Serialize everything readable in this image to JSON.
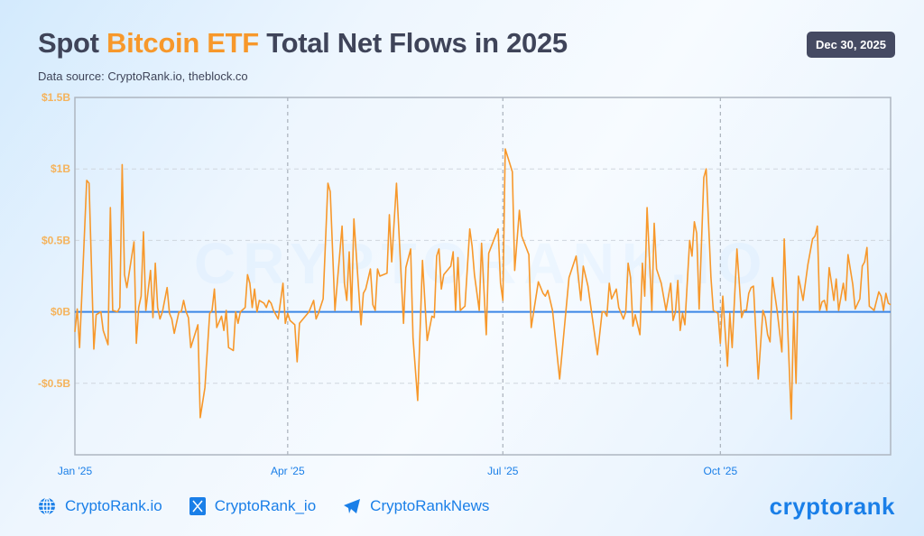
{
  "header": {
    "title_pre": "Spot ",
    "title_highlight": "Bitcoin ETF",
    "title_post": " Total Net Flows in 2025",
    "subtitle": "Data source: CryptoRank.io, theblock.co",
    "date_badge": "Dec 30, 2025"
  },
  "watermark": "CRYPTORANK.IO",
  "footer": {
    "items": [
      {
        "icon": "globe-icon",
        "label": "CryptoRank.io"
      },
      {
        "icon": "x-twitter-icon",
        "label": "CryptoRank_io"
      },
      {
        "icon": "telegram-icon",
        "label": "CryptoRankNews"
      }
    ],
    "logo": "cryptorank"
  },
  "colors": {
    "line": "#f7982b",
    "zero_line": "#3b86e6",
    "title_accent": "#f7982b",
    "tick_y": "#f5b35c",
    "tick_x": "#1a7fe8"
  },
  "chart_data": {
    "type": "line",
    "title": "Spot Bitcoin ETF Total Net Flows in 2025",
    "xlabel": "",
    "ylabel": "",
    "ylim": [
      -1.0,
      1.5
    ],
    "xlim": [
      "2025-01-01",
      "2025-12-12"
    ],
    "y_ticks": [
      {
        "value": 1.5,
        "label": "$1.5B"
      },
      {
        "value": 1.0,
        "label": "$1B"
      },
      {
        "value": 0.5,
        "label": "$0.5B"
      },
      {
        "value": 0,
        "label": "$0B"
      },
      {
        "value": -0.5,
        "label": "-$0.5B"
      }
    ],
    "x_ticks": [
      {
        "value": "2025-01-01",
        "label": "Jan '25"
      },
      {
        "value": "2025-04-01",
        "label": "Apr '25"
      },
      {
        "value": "2025-07-01",
        "label": "Jul '25"
      },
      {
        "value": "2025-10-01",
        "label": "Oct '25"
      }
    ],
    "grid": true,
    "unit": "USD billions",
    "series": [
      {
        "points": [
          [
            "2025-01-01",
            -0.14
          ],
          [
            "2025-01-02",
            0.02
          ],
          [
            "2025-01-03",
            -0.25
          ],
          [
            "2025-01-06",
            0.92
          ],
          [
            "2025-01-07",
            0.9
          ],
          [
            "2025-01-09",
            -0.26
          ],
          [
            "2025-01-10",
            -0.02
          ],
          [
            "2025-01-12",
            0.0
          ],
          [
            "2025-01-13",
            -0.13
          ],
          [
            "2025-01-15",
            -0.23
          ],
          [
            "2025-01-16",
            0.73
          ],
          [
            "2025-01-17",
            0.01
          ],
          [
            "2025-01-19",
            0.0
          ],
          [
            "2025-01-20",
            0.03
          ],
          [
            "2025-01-21",
            1.03
          ],
          [
            "2025-01-22",
            0.26
          ],
          [
            "2025-01-23",
            0.17
          ],
          [
            "2025-01-26",
            0.49
          ],
          [
            "2025-01-27",
            -0.22
          ],
          [
            "2025-01-28",
            0.03
          ],
          [
            "2025-01-29",
            0.11
          ],
          [
            "2025-01-30",
            0.56
          ],
          [
            "2025-01-31",
            0.01
          ],
          [
            "2025-02-02",
            0.29
          ],
          [
            "2025-02-03",
            -0.04
          ],
          [
            "2025-02-04",
            0.34
          ],
          [
            "2025-02-05",
            0.03
          ],
          [
            "2025-02-06",
            -0.05
          ],
          [
            "2025-02-07",
            0.0
          ],
          [
            "2025-02-09",
            0.17
          ],
          [
            "2025-02-10",
            -0.01
          ],
          [
            "2025-02-11",
            -0.05
          ],
          [
            "2025-02-12",
            -0.15
          ],
          [
            "2025-02-14",
            0.0
          ],
          [
            "2025-02-15",
            0.0
          ],
          [
            "2025-02-16",
            0.08
          ],
          [
            "2025-02-17",
            0.0
          ],
          [
            "2025-02-18",
            -0.04
          ],
          [
            "2025-02-19",
            -0.25
          ],
          [
            "2025-02-22",
            -0.09
          ],
          [
            "2025-02-23",
            -0.74
          ],
          [
            "2025-02-25",
            -0.53
          ],
          [
            "2025-02-27",
            -0.01
          ],
          [
            "2025-02-28",
            0.01
          ],
          [
            "2025-03-01",
            0.16
          ],
          [
            "2025-03-02",
            -0.11
          ],
          [
            "2025-03-04",
            -0.03
          ],
          [
            "2025-03-05",
            -0.13
          ],
          [
            "2025-03-06",
            0.01
          ],
          [
            "2025-03-07",
            -0.25
          ],
          [
            "2025-03-09",
            -0.27
          ],
          [
            "2025-03-10",
            0.0
          ],
          [
            "2025-03-11",
            -0.08
          ],
          [
            "2025-03-12",
            0.0
          ],
          [
            "2025-03-14",
            0.03
          ],
          [
            "2025-03-15",
            0.26
          ],
          [
            "2025-03-16",
            0.2
          ],
          [
            "2025-03-17",
            0.03
          ],
          [
            "2025-03-18",
            0.16
          ],
          [
            "2025-03-19",
            0.0
          ],
          [
            "2025-03-20",
            0.08
          ],
          [
            "2025-03-22",
            0.06
          ],
          [
            "2025-03-23",
            0.03
          ],
          [
            "2025-03-24",
            0.08
          ],
          [
            "2025-03-25",
            0.06
          ],
          [
            "2025-03-26",
            0.01
          ],
          [
            "2025-03-28",
            -0.05
          ],
          [
            "2025-03-30",
            0.2
          ],
          [
            "2025-03-31",
            -0.08
          ],
          [
            "2025-04-01",
            -0.01
          ],
          [
            "2025-04-02",
            -0.06
          ],
          [
            "2025-04-04",
            -0.09
          ],
          [
            "2025-04-05",
            -0.35
          ],
          [
            "2025-04-06",
            -0.08
          ],
          [
            "2025-04-10",
            0.0
          ],
          [
            "2025-04-12",
            0.08
          ],
          [
            "2025-04-13",
            -0.05
          ],
          [
            "2025-04-14",
            -0.01
          ],
          [
            "2025-04-16",
            0.09
          ],
          [
            "2025-04-18",
            0.9
          ],
          [
            "2025-04-19",
            0.84
          ],
          [
            "2025-04-21",
            0.01
          ],
          [
            "2025-04-24",
            0.6
          ],
          [
            "2025-04-25",
            0.2
          ],
          [
            "2025-04-26",
            0.08
          ],
          [
            "2025-04-27",
            0.42
          ],
          [
            "2025-04-28",
            0.01
          ],
          [
            "2025-04-29",
            0.65
          ],
          [
            "2025-05-02",
            -0.09
          ],
          [
            "2025-05-03",
            0.13
          ],
          [
            "2025-05-04",
            0.16
          ],
          [
            "2025-05-06",
            0.3
          ],
          [
            "2025-05-07",
            0.05
          ],
          [
            "2025-05-08",
            0.01
          ],
          [
            "2025-05-09",
            0.3
          ],
          [
            "2025-05-10",
            0.25
          ],
          [
            "2025-05-13",
            0.27
          ],
          [
            "2025-05-14",
            0.68
          ],
          [
            "2025-05-15",
            0.35
          ],
          [
            "2025-05-17",
            0.9
          ],
          [
            "2025-05-20",
            -0.08
          ],
          [
            "2025-05-21",
            0.31
          ],
          [
            "2025-05-23",
            0.44
          ],
          [
            "2025-05-24",
            -0.18
          ],
          [
            "2025-05-26",
            -0.62
          ],
          [
            "2025-05-28",
            0.36
          ],
          [
            "2025-05-30",
            -0.2
          ],
          [
            "2025-06-01",
            -0.03
          ],
          [
            "2025-06-02",
            -0.04
          ],
          [
            "2025-06-03",
            0.39
          ],
          [
            "2025-06-04",
            0.44
          ],
          [
            "2025-06-05",
            0.16
          ],
          [
            "2025-06-06",
            0.26
          ],
          [
            "2025-06-09",
            0.32
          ],
          [
            "2025-06-10",
            0.42
          ],
          [
            "2025-06-11",
            0.01
          ],
          [
            "2025-06-12",
            0.38
          ],
          [
            "2025-06-13",
            0.01
          ],
          [
            "2025-06-15",
            0.04
          ],
          [
            "2025-06-17",
            0.58
          ],
          [
            "2025-06-18",
            0.46
          ],
          [
            "2025-06-19",
            0.26
          ],
          [
            "2025-06-21",
            0.01
          ],
          [
            "2025-06-22",
            0.48
          ],
          [
            "2025-06-24",
            -0.16
          ],
          [
            "2025-06-25",
            0.41
          ],
          [
            "2025-06-29",
            0.58
          ],
          [
            "2025-06-30",
            0.2
          ],
          [
            "2025-07-01",
            0.08
          ],
          [
            "2025-07-02",
            1.14
          ],
          [
            "2025-07-05",
            0.98
          ],
          [
            "2025-07-06",
            0.29
          ],
          [
            "2025-07-08",
            0.71
          ],
          [
            "2025-07-09",
            0.53
          ],
          [
            "2025-07-12",
            0.4
          ],
          [
            "2025-07-13",
            -0.11
          ],
          [
            "2025-07-16",
            0.21
          ],
          [
            "2025-07-18",
            0.13
          ],
          [
            "2025-07-19",
            0.11
          ],
          [
            "2025-07-20",
            0.15
          ],
          [
            "2025-07-22",
            0.01
          ],
          [
            "2025-07-25",
            -0.47
          ],
          [
            "2025-07-29",
            0.24
          ],
          [
            "2025-08-01",
            0.39
          ],
          [
            "2025-08-03",
            0.08
          ],
          [
            "2025-08-04",
            0.32
          ],
          [
            "2025-08-06",
            0.18
          ],
          [
            "2025-08-10",
            -0.3
          ],
          [
            "2025-08-12",
            0.0
          ],
          [
            "2025-08-13",
            0.0
          ],
          [
            "2025-08-14",
            -0.03
          ],
          [
            "2025-08-15",
            0.2
          ],
          [
            "2025-08-16",
            0.09
          ],
          [
            "2025-08-18",
            0.16
          ],
          [
            "2025-08-19",
            0.03
          ],
          [
            "2025-08-21",
            -0.05
          ],
          [
            "2025-08-22",
            0.0
          ],
          [
            "2025-08-23",
            0.34
          ],
          [
            "2025-08-24",
            0.24
          ],
          [
            "2025-08-25",
            -0.1
          ],
          [
            "2025-08-26",
            -0.02
          ],
          [
            "2025-08-28",
            -0.16
          ],
          [
            "2025-08-29",
            0.34
          ],
          [
            "2025-08-30",
            0.11
          ],
          [
            "2025-08-31",
            0.73
          ],
          [
            "2025-09-02",
            0.01
          ],
          [
            "2025-09-03",
            0.62
          ],
          [
            "2025-09-04",
            0.3
          ],
          [
            "2025-09-06",
            0.2
          ],
          [
            "2025-09-08",
            0.01
          ],
          [
            "2025-09-10",
            0.2
          ],
          [
            "2025-09-11",
            -0.06
          ],
          [
            "2025-09-12",
            0.0
          ],
          [
            "2025-09-13",
            0.22
          ],
          [
            "2025-09-14",
            -0.13
          ],
          [
            "2025-09-15",
            -0.01
          ],
          [
            "2025-09-16",
            -0.09
          ],
          [
            "2025-09-18",
            0.5
          ],
          [
            "2025-09-19",
            0.39
          ],
          [
            "2025-09-20",
            0.63
          ],
          [
            "2025-09-21",
            0.55
          ],
          [
            "2025-09-22",
            0.02
          ],
          [
            "2025-09-24",
            0.94
          ],
          [
            "2025-09-25",
            1.0
          ],
          [
            "2025-09-27",
            0.24
          ],
          [
            "2025-09-28",
            0.01
          ],
          [
            "2025-09-30",
            -0.01
          ],
          [
            "2025-10-01",
            -0.22
          ],
          [
            "2025-10-02",
            0.11
          ],
          [
            "2025-10-04",
            -0.38
          ],
          [
            "2025-10-05",
            -0.01
          ],
          [
            "2025-10-06",
            -0.25
          ],
          [
            "2025-10-08",
            0.44
          ],
          [
            "2025-10-10",
            -0.04
          ],
          [
            "2025-10-11",
            0.01
          ],
          [
            "2025-10-12",
            0.01
          ],
          [
            "2025-10-13",
            0.13
          ],
          [
            "2025-10-14",
            0.17
          ],
          [
            "2025-10-15",
            0.18
          ],
          [
            "2025-10-17",
            -0.47
          ],
          [
            "2025-10-19",
            0.01
          ],
          [
            "2025-10-20",
            -0.04
          ],
          [
            "2025-10-21",
            -0.16
          ],
          [
            "2025-10-22",
            -0.21
          ],
          [
            "2025-10-23",
            0.24
          ],
          [
            "2025-10-25",
            0.01
          ],
          [
            "2025-10-27",
            -0.28
          ],
          [
            "2025-10-28",
            0.51
          ],
          [
            "2025-10-31",
            -0.75
          ],
          [
            "2025-11-01",
            0.0
          ],
          [
            "2025-11-02",
            -0.5
          ],
          [
            "2025-11-03",
            0.25
          ],
          [
            "2025-11-05",
            0.08
          ],
          [
            "2025-11-07",
            0.33
          ],
          [
            "2025-11-09",
            0.51
          ],
          [
            "2025-11-10",
            0.53
          ],
          [
            "2025-11-11",
            0.6
          ],
          [
            "2025-11-12",
            0.01
          ],
          [
            "2025-11-13",
            0.07
          ],
          [
            "2025-11-14",
            0.08
          ],
          [
            "2025-11-15",
            0.01
          ],
          [
            "2025-11-16",
            0.31
          ],
          [
            "2025-11-17",
            0.2
          ],
          [
            "2025-11-18",
            0.08
          ],
          [
            "2025-11-19",
            0.23
          ],
          [
            "2025-11-20",
            0.01
          ],
          [
            "2025-11-22",
            0.2
          ],
          [
            "2025-11-23",
            0.08
          ],
          [
            "2025-11-24",
            0.4
          ],
          [
            "2025-11-26",
            0.19
          ],
          [
            "2025-11-27",
            0.02
          ],
          [
            "2025-11-29",
            0.09
          ],
          [
            "2025-11-30",
            0.32
          ],
          [
            "2025-12-01",
            0.35
          ],
          [
            "2025-12-02",
            0.45
          ],
          [
            "2025-12-03",
            0.04
          ],
          [
            "2025-12-05",
            0.01
          ],
          [
            "2025-12-07",
            0.14
          ],
          [
            "2025-12-08",
            0.11
          ],
          [
            "2025-12-09",
            0.01
          ],
          [
            "2025-12-10",
            0.13
          ],
          [
            "2025-12-11",
            0.06
          ],
          [
            "2025-12-12",
            0.05
          ]
        ]
      }
    ]
  }
}
